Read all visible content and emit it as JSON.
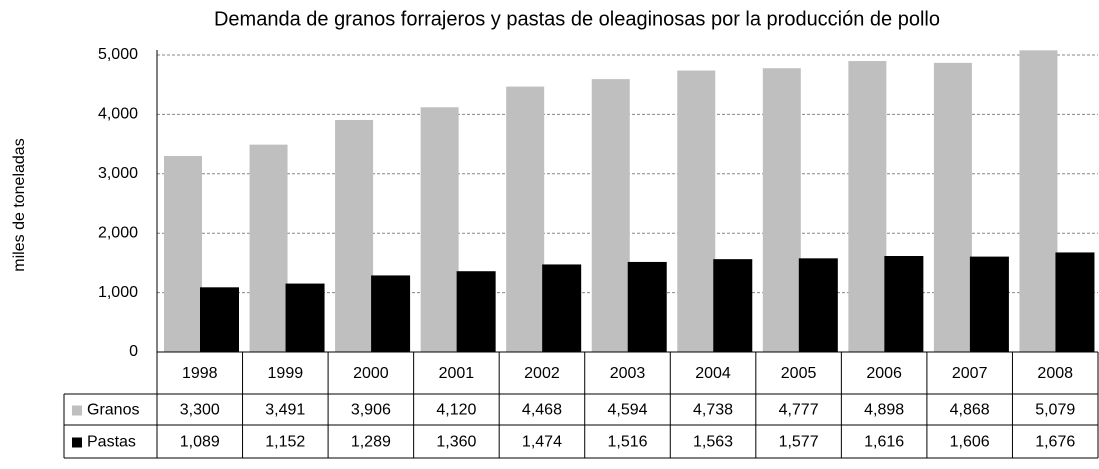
{
  "chart_data": {
    "type": "bar",
    "title": "Demanda de granos forrajeros y pastas de oleaginosas por la producción de pollo",
    "ylabel": "miles de toneladas",
    "categories": [
      "1998",
      "1999",
      "2000",
      "2001",
      "2002",
      "2003",
      "2004",
      "2005",
      "2006",
      "2007",
      "2008"
    ],
    "series": [
      {
        "name": "Granos",
        "color": "#bfbfbf",
        "values": [
          3300,
          3491,
          3906,
          4120,
          4468,
          4594,
          4738,
          4777,
          4898,
          4868,
          5079
        ],
        "value_labels": [
          "3,300",
          "3,491",
          "3,906",
          "4,120",
          "4,468",
          "4,594",
          "4,738",
          "4,777",
          "4,898",
          "4,868",
          "5,079"
        ]
      },
      {
        "name": "Pastas",
        "color": "#000000",
        "values": [
          1089,
          1152,
          1289,
          1360,
          1474,
          1516,
          1563,
          1577,
          1616,
          1606,
          1676
        ],
        "value_labels": [
          "1,089",
          "1,152",
          "1,289",
          "1,360",
          "1,474",
          "1,516",
          "1,563",
          "1,577",
          "1,616",
          "1,606",
          "1,676"
        ]
      }
    ],
    "ylim": [
      0,
      5000
    ],
    "yticks": [
      0,
      {
        "value": 1000,
        "label": "1,000"
      },
      {
        "value": 2000,
        "label": "2,000"
      },
      {
        "value": 3000,
        "label": "3,000"
      },
      {
        "value": 4000,
        "label": "4,000"
      },
      {
        "value": 5000,
        "label": "5,000"
      }
    ],
    "grid": true
  }
}
